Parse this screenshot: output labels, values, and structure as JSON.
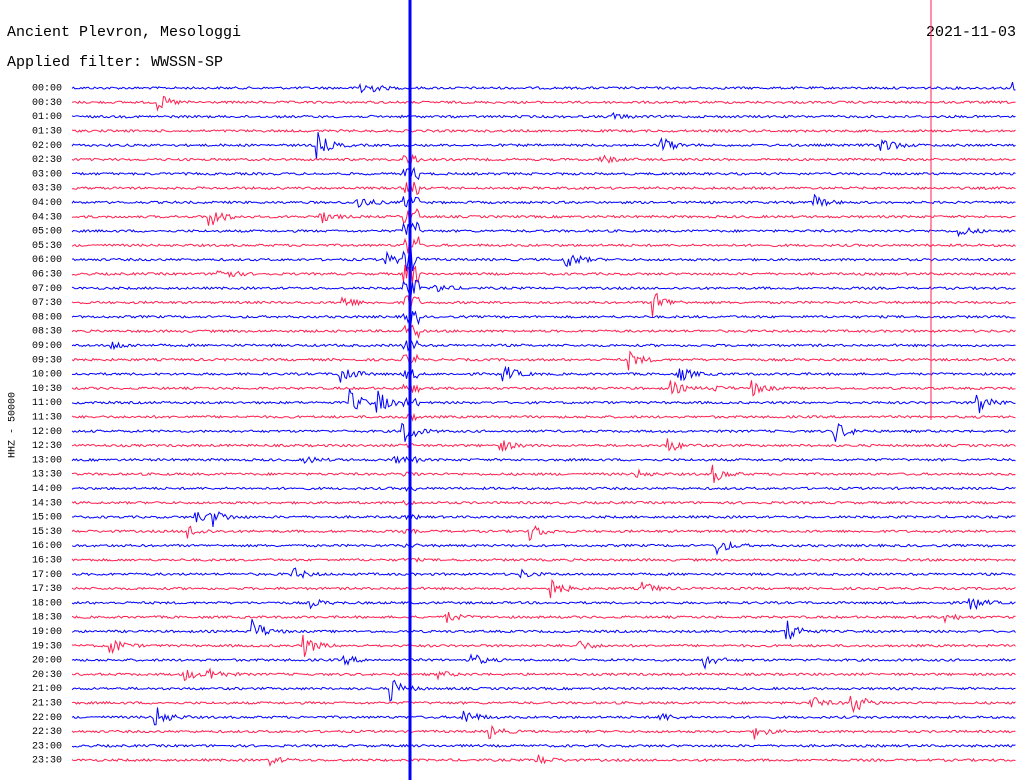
{
  "chart_data": {
    "type": "helicorder",
    "title": "Ancient Plevron, Mesologgi",
    "subtitle": "Applied filter: WWSSN-SP",
    "date": "2021-11-03",
    "ylabel": "HHZ - 50000",
    "colors": [
      "#0000ff",
      "#ff1f4f"
    ],
    "categories": [
      "00:00",
      "00:30",
      "01:00",
      "01:30",
      "02:00",
      "02:30",
      "03:00",
      "03:30",
      "04:00",
      "04:30",
      "05:00",
      "05:30",
      "06:00",
      "06:30",
      "07:00",
      "07:30",
      "08:00",
      "08:30",
      "09:00",
      "09:30",
      "10:00",
      "10:30",
      "11:00",
      "11:30",
      "12:00",
      "12:30",
      "13:00",
      "13:30",
      "14:00",
      "14:30",
      "15:00",
      "15:30",
      "16:00",
      "16:30",
      "17:00",
      "17:30",
      "18:00",
      "18:30",
      "19:00",
      "19:30",
      "20:00",
      "20:30",
      "21:00",
      "21:30",
      "22:00",
      "22:30",
      "23:00",
      "23:30"
    ]
  }
}
